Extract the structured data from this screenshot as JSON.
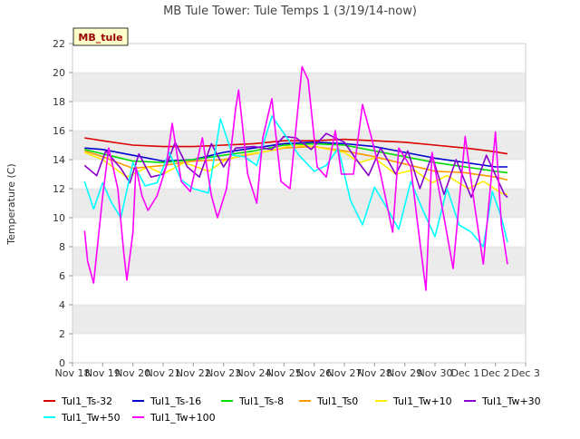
{
  "chart_data": {
    "type": "line",
    "title": "MB Tule Tower: Tule Temps 1 (3/19/14-now)",
    "ylabel": "Temperature (C)",
    "xlabel": "",
    "site_label": "MB_tule",
    "x_ticks": [
      "Nov 18",
      "Nov 19",
      "Nov 20",
      "Nov 21",
      "Nov 22",
      "Nov 23",
      "Nov 24",
      "Nov 25",
      "Nov 26",
      "Nov 27",
      "Nov 28",
      "Nov 29",
      "Nov 30",
      "Dec 1",
      "Dec 2",
      "Dec 3"
    ],
    "xlim": [
      0,
      15
    ],
    "ylim": [
      0,
      22
    ],
    "y_ticks": [
      0,
      2,
      4,
      6,
      8,
      10,
      12,
      14,
      16,
      18,
      20,
      22
    ],
    "background_bands": true,
    "series": [
      {
        "name": "Tul1_Ts-32",
        "color": "#dd0000",
        "points": [
          [
            0.4,
            15.5
          ],
          [
            1.0,
            15.3
          ],
          [
            2.0,
            15.0
          ],
          [
            3.0,
            14.9
          ],
          [
            4.0,
            14.9
          ],
          [
            5.0,
            15.0
          ],
          [
            6.0,
            15.1
          ],
          [
            7.0,
            15.3
          ],
          [
            8.0,
            15.3
          ],
          [
            9.0,
            15.4
          ],
          [
            10.0,
            15.3
          ],
          [
            11.0,
            15.2
          ],
          [
            12.0,
            15.0
          ],
          [
            13.0,
            14.8
          ],
          [
            13.8,
            14.6
          ],
          [
            14.4,
            14.4
          ]
        ]
      },
      {
        "name": "Tul1_Ts-16",
        "color": "#0000cc",
        "points": [
          [
            0.4,
            14.8
          ],
          [
            1.0,
            14.7
          ],
          [
            2.0,
            14.3
          ],
          [
            3.0,
            13.9
          ],
          [
            4.0,
            14.0
          ],
          [
            5.0,
            14.5
          ],
          [
            6.0,
            14.8
          ],
          [
            7.0,
            15.1
          ],
          [
            8.0,
            15.2
          ],
          [
            9.0,
            15.1
          ],
          [
            10.0,
            14.9
          ],
          [
            11.0,
            14.5
          ],
          [
            12.0,
            14.1
          ],
          [
            13.0,
            13.8
          ],
          [
            14.0,
            13.5
          ],
          [
            14.4,
            13.5
          ]
        ]
      },
      {
        "name": "Tul1_Ts-8",
        "color": "#00dd00",
        "points": [
          [
            0.4,
            14.7
          ],
          [
            1.0,
            14.4
          ],
          [
            2.0,
            13.9
          ],
          [
            3.0,
            13.8
          ],
          [
            4.0,
            14.0
          ],
          [
            5.0,
            14.3
          ],
          [
            6.0,
            14.6
          ],
          [
            7.0,
            15.0
          ],
          [
            8.0,
            15.1
          ],
          [
            9.0,
            15.0
          ],
          [
            10.0,
            14.6
          ],
          [
            11.0,
            14.2
          ],
          [
            12.0,
            13.8
          ],
          [
            13.0,
            13.5
          ],
          [
            14.0,
            13.2
          ],
          [
            14.4,
            13.1
          ]
        ]
      },
      {
        "name": "Tul1_Ts0",
        "color": "#ff9900",
        "points": [
          [
            0.4,
            14.6
          ],
          [
            1.0,
            14.2
          ],
          [
            2.0,
            13.4
          ],
          [
            3.0,
            13.6
          ],
          [
            4.0,
            13.9
          ],
          [
            5.0,
            14.0
          ],
          [
            6.0,
            14.4
          ],
          [
            7.0,
            14.8
          ],
          [
            8.0,
            14.9
          ],
          [
            9.0,
            14.6
          ],
          [
            10.0,
            14.2
          ],
          [
            11.0,
            13.7
          ],
          [
            12.0,
            13.2
          ],
          [
            13.0,
            13.1
          ],
          [
            14.0,
            12.8
          ],
          [
            14.4,
            12.6
          ]
        ]
      },
      {
        "name": "Tul1_Tw+10",
        "color": "#ffee00",
        "points": [
          [
            0.4,
            14.5
          ],
          [
            1.0,
            14.0
          ],
          [
            1.8,
            12.8
          ],
          [
            2.5,
            13.5
          ],
          [
            3.0,
            13.0
          ],
          [
            3.7,
            13.8
          ],
          [
            4.5,
            13.2
          ],
          [
            5.0,
            13.9
          ],
          [
            5.6,
            14.3
          ],
          [
            6.5,
            14.6
          ],
          [
            7.3,
            15.0
          ],
          [
            8.0,
            14.9
          ],
          [
            9.0,
            14.5
          ],
          [
            9.5,
            13.8
          ],
          [
            10.0,
            14.1
          ],
          [
            10.7,
            13.0
          ],
          [
            11.3,
            13.3
          ],
          [
            11.9,
            12.4
          ],
          [
            12.4,
            12.9
          ],
          [
            13.1,
            12.0
          ],
          [
            13.6,
            12.5
          ],
          [
            14.2,
            11.7
          ],
          [
            14.4,
            11.6
          ]
        ]
      },
      {
        "name": "Tul1_Tw+30",
        "color": "#8800cc",
        "points": [
          [
            0.4,
            13.6
          ],
          [
            0.8,
            12.9
          ],
          [
            1.1,
            14.6
          ],
          [
            1.6,
            13.4
          ],
          [
            1.9,
            12.4
          ],
          [
            2.2,
            14.4
          ],
          [
            2.6,
            12.8
          ],
          [
            3.0,
            13.0
          ],
          [
            3.4,
            15.2
          ],
          [
            3.8,
            13.5
          ],
          [
            4.2,
            12.8
          ],
          [
            4.6,
            15.1
          ],
          [
            5.0,
            13.5
          ],
          [
            5.4,
            14.8
          ],
          [
            6.0,
            14.9
          ],
          [
            6.6,
            14.7
          ],
          [
            7.0,
            15.6
          ],
          [
            7.4,
            15.5
          ],
          [
            7.9,
            14.7
          ],
          [
            8.4,
            15.8
          ],
          [
            9.0,
            15.2
          ],
          [
            9.4,
            14.0
          ],
          [
            9.8,
            12.9
          ],
          [
            10.2,
            14.8
          ],
          [
            10.7,
            13.0
          ],
          [
            11.1,
            14.6
          ],
          [
            11.5,
            12.0
          ],
          [
            11.9,
            14.3
          ],
          [
            12.3,
            11.6
          ],
          [
            12.7,
            14.0
          ],
          [
            13.2,
            11.4
          ],
          [
            13.7,
            14.3
          ],
          [
            14.3,
            11.6
          ],
          [
            14.4,
            11.4
          ]
        ]
      },
      {
        "name": "Tul1_Tw+50",
        "color": "#00ffff",
        "points": [
          [
            0.4,
            12.5
          ],
          [
            0.7,
            10.6
          ],
          [
            1.0,
            12.4
          ],
          [
            1.3,
            11.0
          ],
          [
            1.6,
            10.0
          ],
          [
            2.0,
            13.8
          ],
          [
            2.4,
            12.2
          ],
          [
            2.8,
            12.4
          ],
          [
            3.2,
            14.5
          ],
          [
            3.6,
            12.6
          ],
          [
            4.0,
            12.0
          ],
          [
            4.5,
            11.7
          ],
          [
            4.9,
            16.8
          ],
          [
            5.3,
            14.3
          ],
          [
            5.7,
            14.2
          ],
          [
            6.1,
            13.6
          ],
          [
            6.6,
            17.0
          ],
          [
            7.1,
            15.5
          ],
          [
            7.5,
            14.3
          ],
          [
            8.0,
            13.2
          ],
          [
            8.4,
            13.6
          ],
          [
            8.8,
            14.8
          ],
          [
            9.2,
            11.2
          ],
          [
            9.6,
            9.5
          ],
          [
            10.0,
            12.1
          ],
          [
            10.4,
            10.7
          ],
          [
            10.8,
            9.2
          ],
          [
            11.2,
            12.5
          ],
          [
            11.6,
            10.5
          ],
          [
            12.0,
            8.7
          ],
          [
            12.4,
            12.0
          ],
          [
            12.8,
            9.5
          ],
          [
            13.2,
            9.0
          ],
          [
            13.6,
            8.0
          ],
          [
            13.9,
            11.8
          ],
          [
            14.2,
            10.0
          ],
          [
            14.4,
            8.3
          ]
        ]
      },
      {
        "name": "Tul1_Tw+100",
        "color": "#ff00ff",
        "points": [
          [
            0.4,
            9.1
          ],
          [
            0.5,
            7.0
          ],
          [
            0.7,
            5.5
          ],
          [
            1.0,
            11.5
          ],
          [
            1.2,
            14.8
          ],
          [
            1.5,
            12.0
          ],
          [
            1.7,
            7.5
          ],
          [
            1.8,
            5.7
          ],
          [
            2.0,
            9.0
          ],
          [
            2.1,
            13.5
          ],
          [
            2.3,
            11.5
          ],
          [
            2.5,
            10.5
          ],
          [
            2.8,
            11.5
          ],
          [
            3.1,
            13.5
          ],
          [
            3.3,
            16.5
          ],
          [
            3.6,
            12.5
          ],
          [
            3.9,
            11.8
          ],
          [
            4.3,
            15.5
          ],
          [
            4.6,
            11.5
          ],
          [
            4.8,
            10.0
          ],
          [
            5.1,
            12.0
          ],
          [
            5.4,
            17.5
          ],
          [
            5.5,
            18.8
          ],
          [
            5.8,
            13.0
          ],
          [
            6.1,
            11.0
          ],
          [
            6.3,
            15.5
          ],
          [
            6.6,
            18.2
          ],
          [
            6.9,
            12.5
          ],
          [
            7.2,
            12.0
          ],
          [
            7.6,
            20.4
          ],
          [
            7.8,
            19.5
          ],
          [
            8.1,
            13.5
          ],
          [
            8.4,
            12.8
          ],
          [
            8.7,
            16.0
          ],
          [
            8.9,
            13.0
          ],
          [
            9.3,
            13.0
          ],
          [
            9.6,
            17.8
          ],
          [
            9.9,
            15.5
          ],
          [
            10.2,
            13.0
          ],
          [
            10.6,
            9.0
          ],
          [
            10.8,
            14.8
          ],
          [
            11.2,
            13.5
          ],
          [
            11.4,
            10.0
          ],
          [
            11.7,
            5.0
          ],
          [
            11.9,
            14.5
          ],
          [
            12.3,
            10.0
          ],
          [
            12.6,
            6.5
          ],
          [
            13.0,
            15.6
          ],
          [
            13.3,
            11.0
          ],
          [
            13.6,
            6.8
          ],
          [
            14.0,
            15.9
          ],
          [
            14.2,
            9.5
          ],
          [
            14.4,
            6.8
          ]
        ]
      }
    ]
  }
}
